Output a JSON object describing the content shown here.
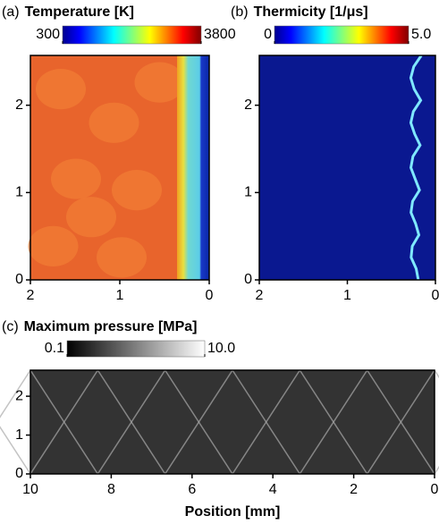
{
  "chart_data": [
    {
      "type": "image",
      "label": "(a)",
      "title": "Temperature [K]",
      "colormap": "jet",
      "clim": [
        300,
        3800
      ],
      "cticks": [
        300,
        3800
      ],
      "xlim": [
        2,
        0
      ],
      "xticks": [
        2,
        1,
        0
      ],
      "ylim": [
        0,
        2.57
      ],
      "yticks": [
        0,
        1,
        2
      ]
    },
    {
      "type": "image",
      "label": "(b)",
      "title": "Thermicity [1/μs]",
      "colormap": "jet",
      "clim": [
        0,
        5
      ],
      "cticks": [
        0,
        {
          "value": 5,
          "label": "5.0"
        }
      ],
      "xlim": [
        2,
        0
      ],
      "xticks": [
        2,
        1,
        0
      ],
      "ylim": [
        0,
        2.57
      ],
      "yticks": [
        0,
        1,
        2
      ]
    },
    {
      "type": "image",
      "label": "(c)",
      "title": "Maximum pressure [MPa]",
      "colormap": "gray",
      "clim": [
        0.1,
        10
      ],
      "cticks": [
        0.1,
        {
          "value": 10,
          "label": "10.0"
        }
      ],
      "xlim": [
        10,
        0
      ],
      "xticks": [
        10,
        8,
        6,
        4,
        2,
        0
      ],
      "ylim": [
        0,
        2.67
      ],
      "yticks": [
        0,
        1,
        2
      ],
      "xlabel": "Position [mm]"
    }
  ]
}
